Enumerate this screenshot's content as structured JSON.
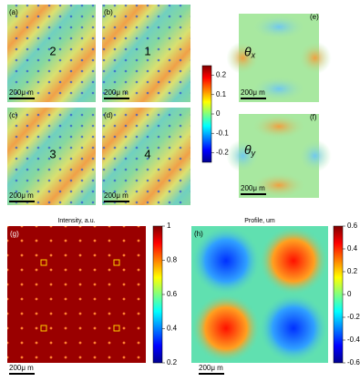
{
  "panels": [
    {
      "label": "(a)",
      "number": "2",
      "scale_bar": "200μ m"
    },
    {
      "label": "(b)",
      "number": "1",
      "scale_bar": "200μ m"
    },
    {
      "label": "(c)",
      "number": "3",
      "scale_bar": "200μ m"
    },
    {
      "label": "(d)",
      "number": "4",
      "scale_bar": "200μ m"
    }
  ],
  "colorbar": {
    "lim": [
      -0.25,
      0.25
    ],
    "ticks": [
      0.2,
      0.1,
      0,
      -0.1,
      -0.2
    ]
  },
  "side_panels": [
    {
      "label": "(e)",
      "symbol": "θ",
      "subscript": "x",
      "scale_bar": "200μ m"
    },
    {
      "label": "(f)",
      "symbol": "θ",
      "subscript": "y",
      "scale_bar": "200μ m"
    }
  ],
  "maps": [
    {
      "label": "(g)",
      "title": "Intensity, a.u.",
      "scale_bar": "200μ m",
      "colorbar": {
        "lim": [
          0.2,
          1
        ],
        "ticks": [
          1,
          0.8,
          0.6,
          0.4,
          0.2
        ]
      }
    },
    {
      "label": "(h)",
      "title": "Profile, um",
      "scale_bar": "200μ m",
      "colorbar": {
        "lim": [
          -0.6,
          0.6
        ],
        "ticks": [
          0.6,
          0.4,
          0.2,
          0,
          -0.2,
          -0.4,
          -0.6
        ]
      }
    }
  ]
}
